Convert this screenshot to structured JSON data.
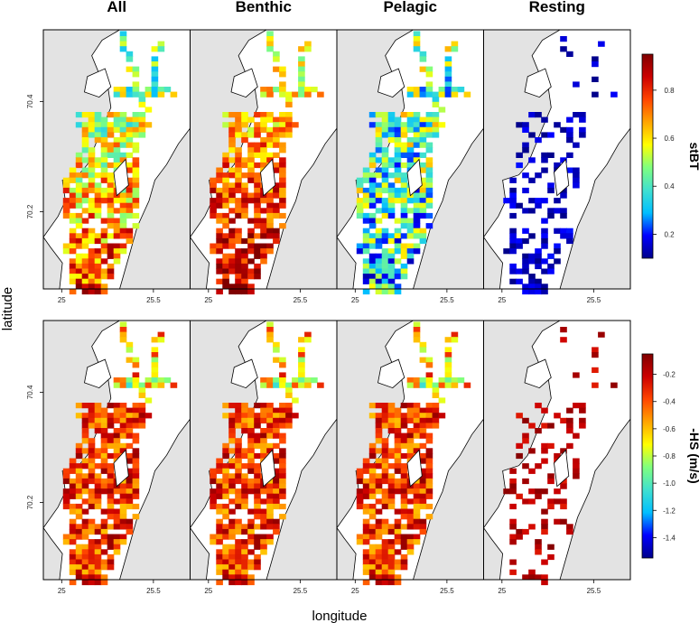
{
  "chart_data": [
    {
      "type": "heatmap",
      "panel_titles": [
        "All",
        "Benthic",
        "Pelagic",
        "Resting"
      ],
      "xlabel": "longitude",
      "ylabel": "latitude",
      "x_ticks": [
        "25",
        "25.5"
      ],
      "y_ticks": [
        "70.2",
        "70.4"
      ],
      "xlim": [
        24.9,
        25.7
      ],
      "ylim": [
        70.06,
        70.53
      ],
      "colorbar_label": "stBT",
      "colorbar_ticks": [
        "0.2",
        "0.4",
        "0.6",
        "0.8"
      ],
      "colorbar_range": [
        0.1,
        0.95
      ]
    },
    {
      "type": "heatmap",
      "panel_titles": [
        "All",
        "Benthic",
        "Pelagic",
        "Resting"
      ],
      "xlabel": "longitude",
      "ylabel": "latitude",
      "x_ticks": [
        "25",
        "25.5"
      ],
      "y_ticks": [
        "70.2",
        "70.4"
      ],
      "xlim": [
        24.9,
        25.7
      ],
      "ylim": [
        70.06,
        70.53
      ],
      "colorbar_label": "-HS (m/s)",
      "colorbar_ticks": [
        "-0.2",
        "-0.4",
        "-0.6",
        "-0.8",
        "-1.0",
        "-1.2",
        "-1.4"
      ],
      "colorbar_range": [
        -1.55,
        -0.05
      ]
    }
  ],
  "colors": {
    "land": "#e3e3e3",
    "sea": "#ffffff",
    "coast": "#000000",
    "colorscale": [
      "#00008b",
      "#0000ff",
      "#00bfff",
      "#40e0d0",
      "#7fff7f",
      "#ffff00",
      "#ffa500",
      "#ff4500",
      "#cc0000",
      "#800000"
    ]
  },
  "labels": {
    "xlabel": "longitude",
    "ylabel": "latitude"
  }
}
